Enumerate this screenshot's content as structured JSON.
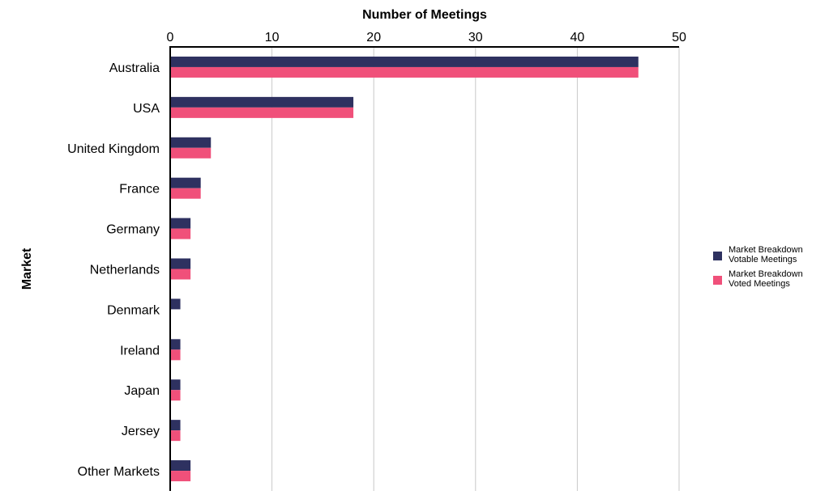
{
  "chart_data": {
    "type": "bar",
    "orientation": "horizontal",
    "title": "",
    "xlabel": "Number of Meetings",
    "ylabel": "Market",
    "xlim": [
      0,
      50
    ],
    "xticks": [
      0,
      10,
      20,
      30,
      40,
      50
    ],
    "x_axis_position": "top",
    "grid": true,
    "legend_position": "right",
    "categories": [
      "Australia",
      "USA",
      "United Kingdom",
      "France",
      "Germany",
      "Netherlands",
      "Denmark",
      "Ireland",
      "Japan",
      "Jersey",
      "Other Markets"
    ],
    "series": [
      {
        "name": "Market Breakdown Votable Meetings",
        "name_lines": [
          "Market Breakdown",
          "Votable Meetings"
        ],
        "color": "#2e3160",
        "values": [
          46,
          18,
          4,
          3,
          2,
          2,
          1,
          1,
          1,
          1,
          2
        ]
      },
      {
        "name": "Market Breakdown Voted Meetings",
        "name_lines": [
          "Market Breakdown",
          "Voted Meetings"
        ],
        "color": "#f0507a",
        "values": [
          46,
          18,
          4,
          3,
          2,
          2,
          0,
          1,
          1,
          1,
          2
        ]
      }
    ]
  }
}
